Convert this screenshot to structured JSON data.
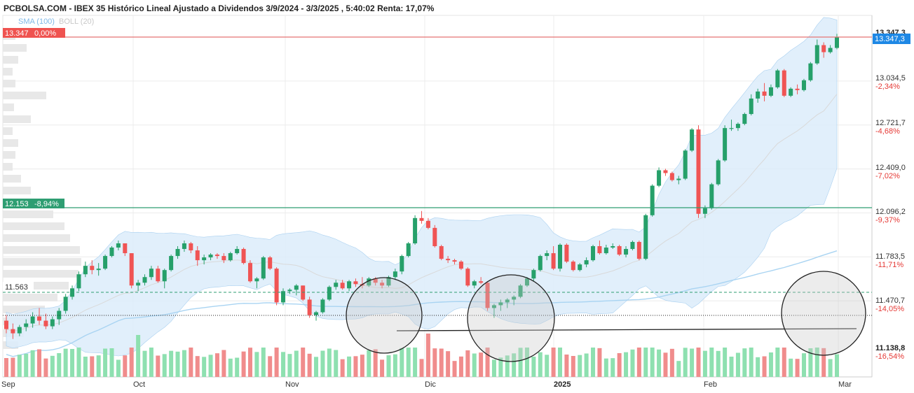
{
  "header": {
    "title": "PCBOLSA.COM - IBEX 35 Histórico Lineal Ajustado a Dividendos 3/9/2024 - 3/3/2025 , 5:40:02 Renta: 17,07%"
  },
  "legend": {
    "sma_label": "SMA (100)",
    "boll_label": "BOLL (20)"
  },
  "badges": {
    "top_left_value": "13.347",
    "top_left_pct": "0,00%",
    "top_right_price": "13.347,3",
    "mid_left_value": "12.153",
    "mid_left_pct": "-8,94%",
    "support_label": "11.563"
  },
  "colors": {
    "up": "#26a06a",
    "down": "#f05454",
    "vol_up": "#8ee0b0",
    "vol_down": "#f08c8c",
    "band_fill": "#dcecfa",
    "band_line": "#a9d0f0",
    "sma100": "#a9d4f2",
    "boll_mid": "#d9d9d9",
    "top_line": "#e57373",
    "mid_line": "#2e9e72",
    "support_line": "#2e9e72"
  },
  "chart_data": {
    "type": "candlestick",
    "title": "PCBOLSA.COM - IBEX 35 Histórico Lineal Ajustado a Dividendos 3/9/2024 - 3/3/2025 , 5:40:02 Renta: 17,07%",
    "x_axis_labels": [
      "Sep",
      "Oct",
      "Nov",
      "Dic",
      "2025",
      "Feb",
      "Mar"
    ],
    "y_axis": {
      "ticks": [
        "13.347,3",
        "13.034,5",
        "12.721,7",
        "12.409,0",
        "12.096,2",
        "11.783,5",
        "11.470,7",
        "11.138,8"
      ],
      "pct_ticks": [
        "-2,34%",
        "-4,68%",
        "-7,02%",
        "-9,37%",
        "-11,71%",
        "-14,05%",
        "-16,54%"
      ],
      "range": [
        11138.8,
        13347.3
      ]
    },
    "reference_lines": [
      {
        "label": "13.347 0,00%",
        "value": 13347
      },
      {
        "label": "12.153 -8,94%",
        "value": 12153
      },
      {
        "label": "11.563",
        "value": 11563
      }
    ],
    "indicators": [
      "SMA (100)",
      "BOLL (20)"
    ],
    "series": [
      {
        "name": "IBEX 35",
        "candles_ohlc": [
          [
            11330,
            11370,
            11240,
            11270
          ],
          [
            11270,
            11310,
            11200,
            11240
          ],
          [
            11240,
            11300,
            11220,
            11285
          ],
          [
            11285,
            11340,
            11255,
            11310
          ],
          [
            11310,
            11390,
            11280,
            11360
          ],
          [
            11360,
            11420,
            11300,
            11330
          ],
          [
            11330,
            11380,
            11270,
            11290
          ],
          [
            11290,
            11360,
            11270,
            11340
          ],
          [
            11340,
            11420,
            11300,
            11400
          ],
          [
            11400,
            11520,
            11380,
            11500
          ],
          [
            11500,
            11580,
            11480,
            11560
          ],
          [
            11560,
            11680,
            11540,
            11660
          ],
          [
            11660,
            11750,
            11640,
            11720
          ],
          [
            11720,
            11760,
            11660,
            11690
          ],
          [
            11690,
            11740,
            11650,
            11700
          ],
          [
            11700,
            11800,
            11690,
            11790
          ],
          [
            11790,
            11860,
            11780,
            11850
          ],
          [
            11850,
            11900,
            11830,
            11880
          ],
          [
            11880,
            11880,
            11790,
            11810
          ],
          [
            11810,
            11810,
            11560,
            11580
          ],
          [
            11580,
            11620,
            11540,
            11600
          ],
          [
            11600,
            11660,
            11580,
            11640
          ],
          [
            11640,
            11720,
            11620,
            11700
          ],
          [
            11700,
            11720,
            11600,
            11610
          ],
          [
            11610,
            11700,
            11560,
            11690
          ],
          [
            11690,
            11800,
            11680,
            11790
          ],
          [
            11790,
            11860,
            11770,
            11840
          ],
          [
            11840,
            11900,
            11820,
            11880
          ],
          [
            11880,
            11890,
            11810,
            11830
          ],
          [
            11830,
            11860,
            11720,
            11760
          ],
          [
            11760,
            11800,
            11730,
            11780
          ],
          [
            11780,
            11810,
            11760,
            11800
          ],
          [
            11800,
            11810,
            11770,
            11790
          ],
          [
            11790,
            11810,
            11740,
            11760
          ],
          [
            11760,
            11820,
            11750,
            11810
          ],
          [
            11810,
            11860,
            11800,
            11840
          ],
          [
            11840,
            11850,
            11730,
            11740
          ],
          [
            11740,
            11760,
            11600,
            11610
          ],
          [
            11610,
            11640,
            11560,
            11630
          ],
          [
            11630,
            11790,
            11620,
            11780
          ],
          [
            11780,
            11790,
            11690,
            11700
          ],
          [
            11700,
            11710,
            11440,
            11460
          ],
          [
            11460,
            11560,
            11440,
            11540
          ],
          [
            11540,
            11560,
            11520,
            11550
          ],
          [
            11550,
            11590,
            11510,
            11580
          ],
          [
            11580,
            11580,
            11470,
            11480
          ],
          [
            11480,
            11500,
            11350,
            11370
          ],
          [
            11370,
            11400,
            11330,
            11390
          ],
          [
            11390,
            11490,
            11380,
            11480
          ],
          [
            11480,
            11580,
            11470,
            11570
          ],
          [
            11570,
            11620,
            11550,
            11600
          ],
          [
            11600,
            11620,
            11550,
            11560
          ],
          [
            11560,
            11620,
            11540,
            11610
          ],
          [
            11610,
            11630,
            11570,
            11590
          ],
          [
            11590,
            11640,
            11560,
            11580
          ],
          [
            11580,
            11640,
            11570,
            11630
          ],
          [
            11630,
            11640,
            11580,
            11600
          ],
          [
            11600,
            11620,
            11560,
            11580
          ],
          [
            11580,
            11650,
            11570,
            11640
          ],
          [
            11640,
            11700,
            11620,
            11680
          ],
          [
            11680,
            11800,
            11660,
            11790
          ],
          [
            11790,
            11890,
            11780,
            11880
          ],
          [
            11880,
            12080,
            11870,
            12060
          ],
          [
            12060,
            12110,
            12020,
            12040
          ],
          [
            12040,
            12060,
            11980,
            11990
          ],
          [
            11990,
            12010,
            11850,
            11860
          ],
          [
            11860,
            11870,
            11760,
            11770
          ],
          [
            11770,
            11790,
            11740,
            11760
          ],
          [
            11760,
            11770,
            11730,
            11750
          ],
          [
            11750,
            11760,
            11690,
            11700
          ],
          [
            11700,
            11710,
            11570,
            11580
          ],
          [
            11580,
            11620,
            11560,
            11610
          ],
          [
            11610,
            11640,
            11590,
            11600
          ],
          [
            11600,
            11610,
            11400,
            11420
          ],
          [
            11420,
            11450,
            11350,
            11440
          ],
          [
            11440,
            11480,
            11400,
            11460
          ],
          [
            11460,
            11490,
            11420,
            11480
          ],
          [
            11480,
            11510,
            11440,
            11500
          ],
          [
            11500,
            11590,
            11490,
            11580
          ],
          [
            11580,
            11640,
            11570,
            11630
          ],
          [
            11630,
            11700,
            11610,
            11690
          ],
          [
            11690,
            11800,
            11680,
            11790
          ],
          [
            11790,
            11830,
            11760,
            11810
          ],
          [
            11810,
            11860,
            11690,
            11700
          ],
          [
            11700,
            11880,
            11680,
            11870
          ],
          [
            11870,
            11880,
            11740,
            11750
          ],
          [
            11750,
            11760,
            11680,
            11690
          ],
          [
            11690,
            11740,
            11680,
            11730
          ],
          [
            11730,
            11780,
            11710,
            11760
          ],
          [
            11760,
            11870,
            11750,
            11860
          ],
          [
            11860,
            11900,
            11800,
            11810
          ],
          [
            11810,
            11870,
            11800,
            11850
          ],
          [
            11850,
            11880,
            11840,
            11860
          ],
          [
            11860,
            11870,
            11790,
            11800
          ],
          [
            11800,
            11860,
            11780,
            11840
          ],
          [
            11840,
            11900,
            11830,
            11890
          ],
          [
            11890,
            11900,
            11760,
            11770
          ],
          [
            11770,
            12090,
            11760,
            12080
          ],
          [
            12080,
            12300,
            12070,
            12290
          ],
          [
            12290,
            12420,
            12280,
            12400
          ],
          [
            12400,
            12410,
            12360,
            12380
          ],
          [
            12380,
            12390,
            12320,
            12330
          ],
          [
            12330,
            12360,
            12300,
            12340
          ],
          [
            12340,
            12550,
            12330,
            12540
          ],
          [
            12540,
            12700,
            12530,
            12690
          ],
          [
            12690,
            12720,
            12060,
            12090
          ],
          [
            12090,
            12150,
            12060,
            12130
          ],
          [
            12130,
            12310,
            12120,
            12300
          ],
          [
            12300,
            12480,
            12290,
            12470
          ],
          [
            12470,
            12720,
            12460,
            12700
          ],
          [
            12700,
            12760,
            12680,
            12700
          ],
          [
            12700,
            12740,
            12680,
            12730
          ],
          [
            12730,
            12810,
            12720,
            12800
          ],
          [
            12800,
            12940,
            12790,
            12910
          ],
          [
            12910,
            12980,
            12880,
            12960
          ],
          [
            12960,
            13020,
            12890,
            12930
          ],
          [
            12930,
            13010,
            12920,
            12990
          ],
          [
            12990,
            13120,
            12980,
            13110
          ],
          [
            13110,
            13120,
            12920,
            12930
          ],
          [
            12930,
            12990,
            12920,
            12980
          ],
          [
            12980,
            13010,
            12940,
            12970
          ],
          [
            12970,
            13050,
            12960,
            13040
          ],
          [
            13040,
            13170,
            13030,
            13160
          ],
          [
            13160,
            13330,
            13150,
            13290
          ],
          [
            13290,
            13310,
            13200,
            13240
          ],
          [
            13240,
            13290,
            13230,
            13270
          ],
          [
            13270,
            13370,
            13260,
            13347
          ]
        ]
      }
    ]
  }
}
